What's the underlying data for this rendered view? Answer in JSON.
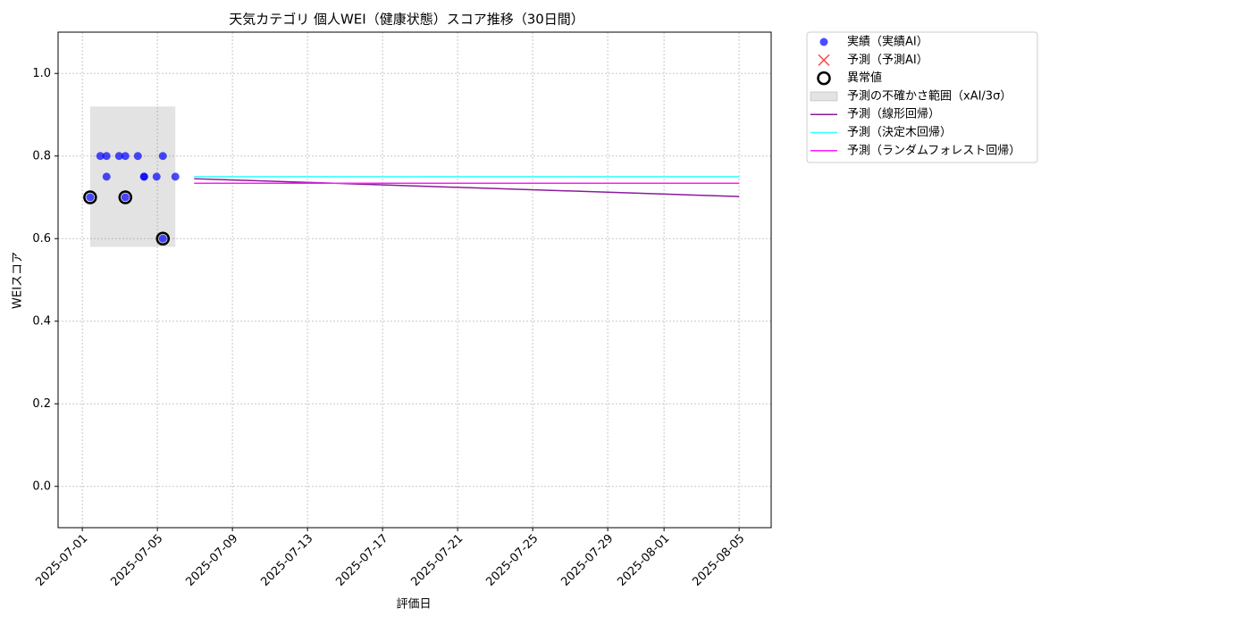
{
  "chart_data": {
    "type": "scatter",
    "title": "天気カテゴリ 個人WEI（健康状態）スコア推移（30日間）",
    "xlabel": "評価日",
    "ylabel": "WEIスコア",
    "xlim": [
      "2025-06-29T17:00",
      "2025-08-06T17:00"
    ],
    "ylim": [
      -0.1,
      1.1
    ],
    "xticks": [
      "2025-07-01",
      "2025-07-05",
      "2025-07-09",
      "2025-07-13",
      "2025-07-17",
      "2025-07-21",
      "2025-07-25",
      "2025-07-29",
      "2025-08-01",
      "2025-08-05"
    ],
    "yticks": [
      {
        "value": 0,
        "label": "0.0"
      },
      0.2,
      0.4,
      0.6,
      0.8,
      {
        "value": 1,
        "label": "1.0"
      }
    ],
    "grid": true,
    "legend": "outside-upper-right",
    "series": [
      {
        "name": "実績（実績AI）",
        "type": "scatter",
        "marker": "circle",
        "color": "#0000ff",
        "x": [
          "2025-07-01T10:00",
          "2025-07-01T23:00",
          "2025-07-02T07:00",
          "2025-07-02T07:00",
          "2025-07-02T23:00",
          "2025-07-03T07:00",
          "2025-07-03T07:00",
          "2025-07-03T23:00",
          "2025-07-04T07:00",
          "2025-07-04T07:00",
          "2025-07-04T23:00",
          "2025-07-05T07:00",
          "2025-07-05T07:00",
          "2025-07-05T23:00"
        ],
        "values": [
          0.7,
          0.8,
          0.8,
          0.75,
          0.8,
          0.8,
          0.7,
          0.8,
          0.75,
          0.75,
          0.75,
          0.8,
          0.6,
          0.75
        ]
      },
      {
        "name": "予測（予測AI）",
        "type": "scatter",
        "marker": "x",
        "color": "#ff0000",
        "x": [],
        "values": []
      },
      {
        "name": "異常値",
        "type": "scatter",
        "marker": "ring",
        "color": "#000000",
        "x": [
          "2025-07-01T10:00",
          "2025-07-03T07:00",
          "2025-07-05T07:00"
        ],
        "values": [
          0.7,
          0.7,
          0.6
        ]
      },
      {
        "name": "予測の不確かさ範囲（xAI/3σ）",
        "type": "band",
        "color": "#808080",
        "x": [
          "2025-07-01T10:00",
          "2025-07-05T23:00"
        ],
        "lower": [
          0.58,
          0.58
        ],
        "upper": [
          0.92,
          0.92
        ]
      },
      {
        "name": "予測（線形回帰）",
        "type": "line",
        "color": "#8b1a9b",
        "x": [
          "2025-07-06T23:00",
          "2025-08-05T00:00"
        ],
        "values": [
          0.745,
          0.702
        ]
      },
      {
        "name": "予測（決定木回帰）",
        "type": "line",
        "color": "#33ffff",
        "x": [
          "2025-07-06T23:00",
          "2025-08-05T00:00"
        ],
        "values": [
          0.75,
          0.75
        ]
      },
      {
        "name": "予測（ランダムフォレスト回帰）",
        "type": "line",
        "color": "#ff1aff",
        "x": [
          "2025-07-06T23:00",
          "2025-08-05T00:00"
        ],
        "values": [
          0.734,
          0.734
        ]
      }
    ]
  }
}
